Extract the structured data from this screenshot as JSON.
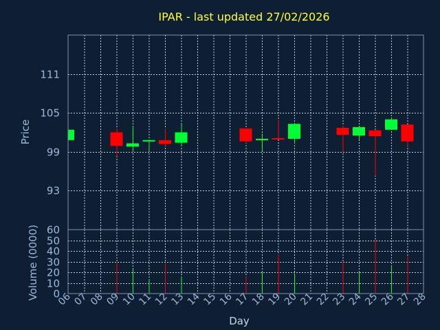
{
  "chart_data": {
    "type": "candlestick",
    "title": "IPAR - last updated 27/02/2026",
    "price_panel": {
      "ylabel": "Price",
      "yticks": [
        93,
        99,
        105,
        111
      ],
      "ylim": [
        87,
        117
      ]
    },
    "volume_panel": {
      "ylabel": "Volume (0000)",
      "yticks": [
        0,
        10,
        20,
        30,
        40,
        50,
        60
      ],
      "ylim": [
        0,
        60
      ]
    },
    "xlabel": "Day",
    "x_ticks": [
      "06",
      "07",
      "08",
      "09",
      "10",
      "11",
      "12",
      "13",
      "14",
      "15",
      "16",
      "17",
      "18",
      "19",
      "20",
      "21",
      "22",
      "23",
      "24",
      "25",
      "26",
      "27",
      "28"
    ],
    "colors": {
      "up": "#00ff33",
      "down": "#ff0000"
    },
    "candles": [
      {
        "day": "06",
        "open": 100.8,
        "high": 102.4,
        "low": 100.8,
        "close": 102.4,
        "volume": 0
      },
      {
        "day": "09",
        "open": 102.0,
        "high": 102.6,
        "low": 98.3,
        "close": 99.9,
        "volume": 29
      },
      {
        "day": "10",
        "open": 99.8,
        "high": 103.0,
        "low": 99.0,
        "close": 100.3,
        "volume": 23
      },
      {
        "day": "11",
        "open": 100.6,
        "high": 100.9,
        "low": 99.1,
        "close": 100.8,
        "volume": 13
      },
      {
        "day": "12",
        "open": 100.8,
        "high": 102.6,
        "low": 99.9,
        "close": 100.2,
        "volume": 29
      },
      {
        "day": "13",
        "open": 100.4,
        "high": 103.3,
        "low": 99.9,
        "close": 102.0,
        "volume": 16
      },
      {
        "day": "17",
        "open": 102.6,
        "high": 102.6,
        "low": 100.3,
        "close": 100.6,
        "volume": 16
      },
      {
        "day": "18",
        "open": 100.8,
        "high": 101.8,
        "low": 99.2,
        "close": 101.0,
        "volume": 21
      },
      {
        "day": "19",
        "open": 101.1,
        "high": 103.9,
        "low": 100.9,
        "close": 100.9,
        "volume": 37
      },
      {
        "day": "20",
        "open": 101.0,
        "high": 103.4,
        "low": 100.3,
        "close": 103.3,
        "volume": 18
      },
      {
        "day": "23",
        "open": 102.7,
        "high": 103.0,
        "low": 99.0,
        "close": 101.6,
        "volume": 30
      },
      {
        "day": "24",
        "open": 101.5,
        "high": 102.9,
        "low": 100.9,
        "close": 102.8,
        "volume": 21
      },
      {
        "day": "25",
        "open": 102.3,
        "high": 102.3,
        "low": 95.3,
        "close": 101.4,
        "volume": 51
      },
      {
        "day": "26",
        "open": 102.4,
        "high": 104.2,
        "low": 102.4,
        "close": 104.0,
        "volume": 26
      },
      {
        "day": "27",
        "open": 103.2,
        "high": 103.2,
        "low": 99.9,
        "close": 100.6,
        "volume": 35
      }
    ]
  }
}
